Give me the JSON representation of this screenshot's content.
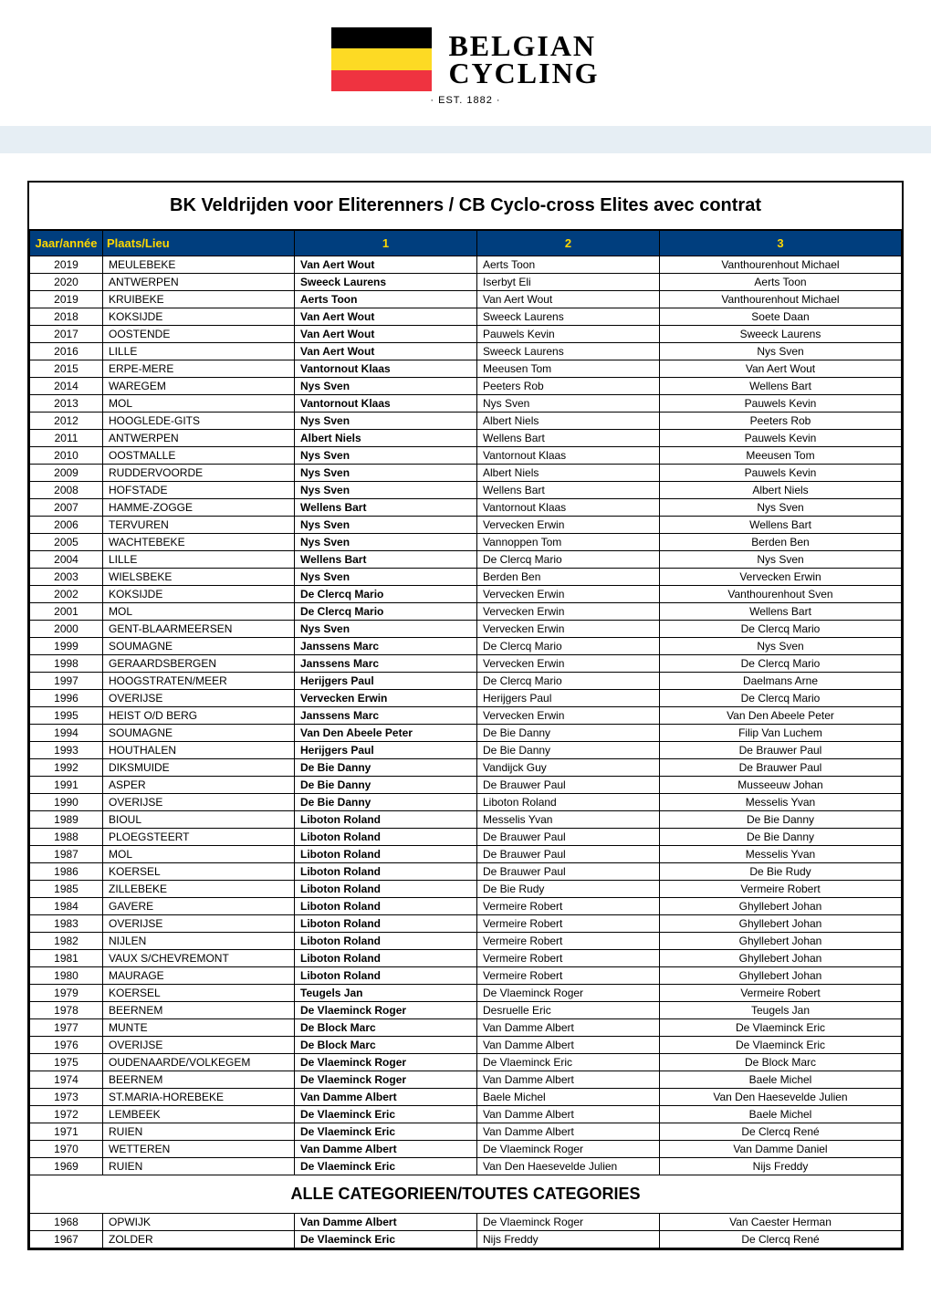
{
  "logo": {
    "line1": "BELGIAN",
    "line2": "CYCLING",
    "est": "· EST. 1882 ·",
    "flag_colors": [
      "#000000",
      "#fdda24",
      "#ef3340"
    ]
  },
  "title": "BK Veldrijden voor Eliterenners / CB Cyclo-cross Elites avec contrat",
  "section_header": "ALLE CATEGORIEEN/TOUTES CATEGORIES",
  "columns": {
    "year": "Jaar/année",
    "place": "Plaats/Lieu",
    "first": "1",
    "second": "2",
    "third": "3"
  },
  "header_bg": "#003e7e",
  "header_fg": "#ffd700",
  "band_color": "#e6eef4",
  "rows_main": [
    {
      "year": "2019",
      "place": "MEULEBEKE",
      "first": "Van Aert Wout",
      "second": "Aerts Toon",
      "third": "Vanthourenhout Michael"
    },
    {
      "year": "2020",
      "place": "ANTWERPEN",
      "first": "Sweeck Laurens",
      "second": "Iserbyt Eli",
      "third": "Aerts Toon"
    },
    {
      "year": "2019",
      "place": "KRUIBEKE",
      "first": "Aerts Toon",
      "second": "Van Aert Wout",
      "third": "Vanthourenhout Michael"
    },
    {
      "year": "2018",
      "place": "KOKSIJDE",
      "first": "Van Aert Wout",
      "second": "Sweeck Laurens",
      "third": "Soete Daan"
    },
    {
      "year": "2017",
      "place": "OOSTENDE",
      "first": "Van Aert Wout",
      "second": "Pauwels Kevin",
      "third": "Sweeck Laurens"
    },
    {
      "year": "2016",
      "place": "LILLE",
      "first": "Van Aert Wout",
      "second": "Sweeck Laurens",
      "third": "Nys Sven"
    },
    {
      "year": "2015",
      "place": "ERPE-MERE",
      "first": "Vantornout Klaas",
      "second": "Meeusen Tom",
      "third": "Van Aert Wout"
    },
    {
      "year": "2014",
      "place": "WAREGEM",
      "first": "Nys Sven",
      "second": "Peeters Rob",
      "third": "Wellens Bart"
    },
    {
      "year": "2013",
      "place": "MOL",
      "first": "Vantornout Klaas",
      "second": "Nys Sven",
      "third": "Pauwels Kevin"
    },
    {
      "year": "2012",
      "place": "HOOGLEDE-GITS",
      "first": "Nys Sven",
      "second": "Albert Niels",
      "third": "Peeters Rob"
    },
    {
      "year": "2011",
      "place": "ANTWERPEN",
      "first": "Albert Niels",
      "second": "Wellens Bart",
      "third": "Pauwels Kevin"
    },
    {
      "year": "2010",
      "place": "OOSTMALLE",
      "first": "Nys Sven",
      "second": "Vantornout Klaas",
      "third": "Meeusen Tom"
    },
    {
      "year": "2009",
      "place": "RUDDERVOORDE",
      "first": "Nys Sven",
      "second": "Albert Niels",
      "third": "Pauwels Kevin"
    },
    {
      "year": "2008",
      "place": "HOFSTADE",
      "first": "Nys Sven",
      "second": "Wellens Bart",
      "third": "Albert Niels"
    },
    {
      "year": "2007",
      "place": "HAMME-ZOGGE",
      "first": "Wellens Bart",
      "second": "Vantornout Klaas",
      "third": "Nys Sven"
    },
    {
      "year": "2006",
      "place": "TERVUREN",
      "first": "Nys Sven",
      "second": "Vervecken Erwin",
      "third": "Wellens Bart"
    },
    {
      "year": "2005",
      "place": "WACHTEBEKE",
      "first": "Nys Sven",
      "second": "Vannoppen Tom",
      "third": "Berden Ben"
    },
    {
      "year": "2004",
      "place": "LILLE",
      "first": "Wellens Bart",
      "second": "De Clercq Mario",
      "third": "Nys Sven"
    },
    {
      "year": "2003",
      "place": "WIELSBEKE",
      "first": "Nys Sven",
      "second": "Berden Ben",
      "third": "Vervecken Erwin"
    },
    {
      "year": "2002",
      "place": "KOKSIJDE",
      "first": "De Clercq Mario",
      "second": "Vervecken Erwin",
      "third": "Vanthourenhout Sven"
    },
    {
      "year": "2001",
      "place": "MOL",
      "first": "De Clercq Mario",
      "second": "Vervecken Erwin",
      "third": "Wellens Bart"
    },
    {
      "year": "2000",
      "place": "GENT-BLAARMEERSEN",
      "first": "Nys Sven",
      "second": "Vervecken Erwin",
      "third": "De Clercq Mario"
    },
    {
      "year": "1999",
      "place": "SOUMAGNE",
      "first": "Janssens Marc",
      "second": "De Clercq Mario",
      "third": "Nys Sven"
    },
    {
      "year": "1998",
      "place": "GERAARDSBERGEN",
      "first": "Janssens Marc",
      "second": "Vervecken Erwin",
      "third": "De Clercq Mario"
    },
    {
      "year": "1997",
      "place": "HOOGSTRATEN/MEER",
      "first": "Herijgers Paul",
      "second": "De Clercq Mario",
      "third": "Daelmans Arne"
    },
    {
      "year": "1996",
      "place": "OVERIJSE",
      "first": "Vervecken Erwin",
      "second": "Herijgers Paul",
      "third": "De Clercq Mario"
    },
    {
      "year": "1995",
      "place": "HEIST O/D BERG",
      "first": "Janssens Marc",
      "second": "Vervecken Erwin",
      "third": "Van Den Abeele Peter"
    },
    {
      "year": "1994",
      "place": "SOUMAGNE",
      "first": "Van Den Abeele Peter",
      "second": "De Bie Danny",
      "third": "Filip Van Luchem"
    },
    {
      "year": "1993",
      "place": "HOUTHALEN",
      "first": "Herijgers Paul",
      "second": "De Bie Danny",
      "third": "De Brauwer Paul"
    },
    {
      "year": "1992",
      "place": "DIKSMUIDE",
      "first": "De Bie Danny",
      "second": "Vandijck Guy",
      "third": "De Brauwer Paul"
    },
    {
      "year": "1991",
      "place": "ASPER",
      "first": "De Bie Danny",
      "second": "De Brauwer Paul",
      "third": "Musseeuw Johan"
    },
    {
      "year": "1990",
      "place": "OVERIJSE",
      "first": "De Bie Danny",
      "second": "Liboton Roland",
      "third": "Messelis Yvan"
    },
    {
      "year": "1989",
      "place": "BIOUL",
      "first": "Liboton Roland",
      "second": "Messelis Yvan",
      "third": "De Bie Danny"
    },
    {
      "year": "1988",
      "place": "PLOEGSTEERT",
      "first": "Liboton Roland",
      "second": "De Brauwer Paul",
      "third": "De Bie Danny"
    },
    {
      "year": "1987",
      "place": "MOL",
      "first": "Liboton Roland",
      "second": "De Brauwer Paul",
      "third": "Messelis Yvan"
    },
    {
      "year": "1986",
      "place": "KOERSEL",
      "first": "Liboton Roland",
      "second": "De Brauwer Paul",
      "third": "De Bie Rudy"
    },
    {
      "year": "1985",
      "place": "ZILLEBEKE",
      "first": "Liboton Roland",
      "second": "De Bie Rudy",
      "third": "Vermeire Robert"
    },
    {
      "year": "1984",
      "place": "GAVERE",
      "first": "Liboton Roland",
      "second": "Vermeire Robert",
      "third": "Ghyllebert Johan"
    },
    {
      "year": "1983",
      "place": "OVERIJSE",
      "first": "Liboton Roland",
      "second": "Vermeire Robert",
      "third": "Ghyllebert Johan"
    },
    {
      "year": "1982",
      "place": "NIJLEN",
      "first": "Liboton Roland",
      "second": "Vermeire Robert",
      "third": "Ghyllebert Johan"
    },
    {
      "year": "1981",
      "place": "VAUX S/CHEVREMONT",
      "first": "Liboton Roland",
      "second": "Vermeire Robert",
      "third": "Ghyllebert Johan"
    },
    {
      "year": "1980",
      "place": "MAURAGE",
      "first": "Liboton Roland",
      "second": "Vermeire Robert",
      "third": "Ghyllebert Johan"
    },
    {
      "year": "1979",
      "place": "KOERSEL",
      "first": "Teugels Jan",
      "second": "De Vlaeminck Roger",
      "third": "Vermeire Robert"
    },
    {
      "year": "1978",
      "place": "BEERNEM",
      "first": "De Vlaeminck Roger",
      "second": "Desruelle Eric",
      "third": "Teugels Jan"
    },
    {
      "year": "1977",
      "place": "MUNTE",
      "first": "De Block Marc",
      "second": "Van Damme Albert",
      "third": "De Vlaeminck Eric"
    },
    {
      "year": "1976",
      "place": "OVERIJSE",
      "first": "De Block Marc",
      "second": "Van Damme Albert",
      "third": "De Vlaeminck Eric"
    },
    {
      "year": "1975",
      "place": "OUDENAARDE/VOLKEGEM",
      "first": "De Vlaeminck Roger",
      "second": "De Vlaeminck Eric",
      "third": "De Block Marc"
    },
    {
      "year": "1974",
      "place": "BEERNEM",
      "first": "De Vlaeminck Roger",
      "second": "Van Damme Albert",
      "third": "Baele Michel"
    },
    {
      "year": "1973",
      "place": "ST.MARIA-HOREBEKE",
      "first": "Van Damme Albert",
      "second": "Baele Michel",
      "third": "Van Den Haesevelde Julien"
    },
    {
      "year": "1972",
      "place": "LEMBEEK",
      "first": "De Vlaeminck Eric",
      "second": "Van Damme Albert",
      "third": "Baele Michel"
    },
    {
      "year": "1971",
      "place": "RUIEN",
      "first": "De Vlaeminck Eric",
      "second": "Van Damme Albert",
      "third": "De Clercq René"
    },
    {
      "year": "1970",
      "place": "WETTEREN",
      "first": "Van Damme Albert",
      "second": "De Vlaeminck Roger",
      "third": "Van Damme Daniel"
    },
    {
      "year": "1969",
      "place": "RUIEN",
      "first": "De Vlaeminck Eric",
      "second": "Van Den Haesevelde Julien",
      "third": "Nijs Freddy"
    }
  ],
  "rows_all": [
    {
      "year": "1968",
      "place": "OPWIJK",
      "first": "Van Damme Albert",
      "second": "De Vlaeminck Roger",
      "third": "Van Caester Herman"
    },
    {
      "year": "1967",
      "place": "ZOLDER",
      "first": "De Vlaeminck Eric",
      "second": "Nijs Freddy",
      "third": "De Clercq René"
    }
  ]
}
